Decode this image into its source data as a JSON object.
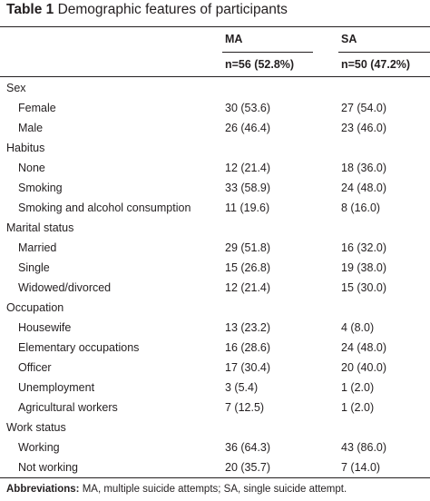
{
  "table": {
    "number": "Table 1",
    "title": "Demographic features of participants",
    "col_ma": "MA",
    "col_sa": "SA",
    "n_ma": "n=56 (52.8%)",
    "n_sa": "n=50 (47.2%)",
    "rows": [
      {
        "type": "group",
        "label": "Sex"
      },
      {
        "type": "item",
        "label": "Female",
        "ma": "30 (53.6)",
        "sa": "27 (54.0)"
      },
      {
        "type": "item",
        "label": "Male",
        "ma": "26 (46.4)",
        "sa": "23 (46.0)"
      },
      {
        "type": "group",
        "label": "Habitus"
      },
      {
        "type": "item",
        "label": "None",
        "ma": "12 (21.4)",
        "sa": "18 (36.0)"
      },
      {
        "type": "item",
        "label": "Smoking",
        "ma": "33 (58.9)",
        "sa": "24 (48.0)"
      },
      {
        "type": "item",
        "label": "Smoking and alcohol consumption",
        "ma": "11 (19.6)",
        "sa": "8 (16.0)"
      },
      {
        "type": "group",
        "label": "Marital status"
      },
      {
        "type": "item",
        "label": "Married",
        "ma": "29 (51.8)",
        "sa": "16 (32.0)"
      },
      {
        "type": "item",
        "label": "Single",
        "ma": "15 (26.8)",
        "sa": "19 (38.0)"
      },
      {
        "type": "item",
        "label": "Widowed/divorced",
        "ma": "12 (21.4)",
        "sa": "15 (30.0)"
      },
      {
        "type": "group",
        "label": "Occupation"
      },
      {
        "type": "item",
        "label": "Housewife",
        "ma": "13 (23.2)",
        "sa": "4 (8.0)"
      },
      {
        "type": "item",
        "label": "Elementary occupations",
        "ma": "16 (28.6)",
        "sa": "24 (48.0)"
      },
      {
        "type": "item",
        "label": "Officer",
        "ma": "17 (30.4)",
        "sa": "20 (40.0)"
      },
      {
        "type": "item",
        "label": "Unemployment",
        "ma": "3 (5.4)",
        "sa": "1 (2.0)"
      },
      {
        "type": "item",
        "label": "Agricultural workers",
        "ma": "7 (12.5)",
        "sa": "1 (2.0)"
      },
      {
        "type": "group",
        "label": "Work status"
      },
      {
        "type": "item",
        "label": "Working",
        "ma": "36 (64.3)",
        "sa": "43 (86.0)"
      },
      {
        "type": "item",
        "label": "Not working",
        "ma": "20 (35.7)",
        "sa": "7 (14.0)"
      }
    ]
  },
  "footnote": {
    "label": "Abbreviations:",
    "text": " MA, multiple suicide attempts; SA, single suicide attempt."
  }
}
